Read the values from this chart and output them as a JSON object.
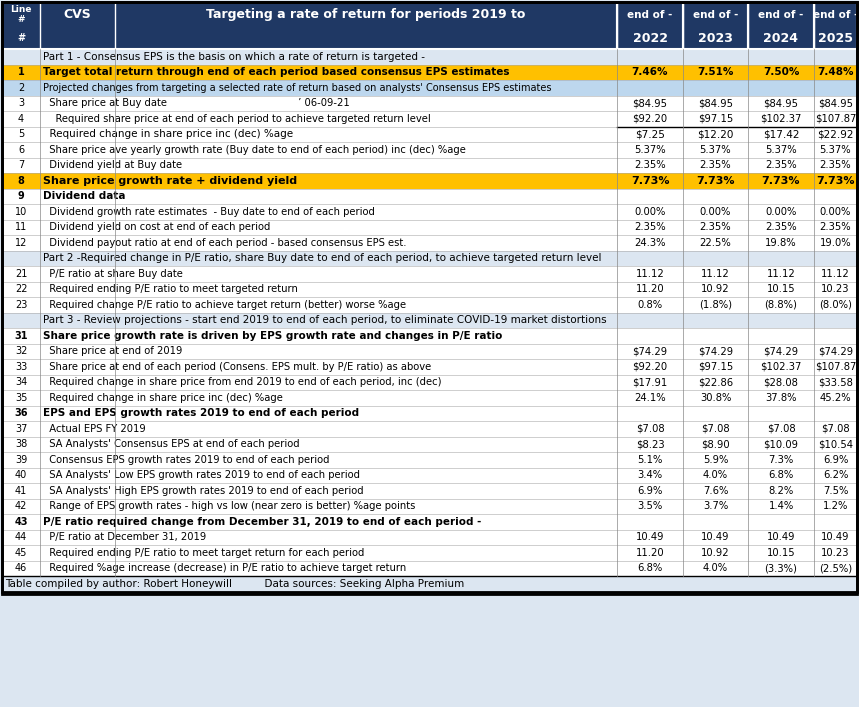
{
  "header_row1": [
    "Line\n#",
    "CVS",
    "Targeting a rate of return for periods 2019 to",
    "end of -",
    "end of -",
    "end of -",
    "end of -"
  ],
  "header_row2": [
    "",
    "",
    "",
    "2022",
    "2023",
    "2024",
    "2025"
  ],
  "rows": [
    {
      "line": "",
      "indent": 0,
      "text": "Part 1 - Consensus EPS is the basis on which a rate of return is targeted -",
      "vals": [
        "",
        "",
        "",
        ""
      ],
      "style": "part_header"
    },
    {
      "line": "1",
      "indent": 0,
      "text": "Target total return through end of each period based consensus EPS estimates",
      "vals": [
        "7.46%",
        "7.51%",
        "7.50%",
        "7.48%"
      ],
      "style": "highlight_gold"
    },
    {
      "line": "2",
      "indent": 0,
      "text": "Projected changes from targeting a selected rate of return based on analysts' Consensus EPS estimates",
      "vals": [
        "",
        "",
        "",
        ""
      ],
      "style": "subheader_blue"
    },
    {
      "line": "3",
      "indent": 1,
      "text": "Share price at Buy date                                          ’ 06-09-21",
      "vals": [
        "$84.95",
        "$84.95",
        "$84.95",
        "$84.95"
      ],
      "style": "normal"
    },
    {
      "line": "4",
      "indent": 2,
      "text": "Required share price at end of each period to achieve targeted return level",
      "vals": [
        "$92.20",
        "$97.15",
        "$102.37",
        "$107.87"
      ],
      "style": "normal"
    },
    {
      "line": "5",
      "indent": 1,
      "text": "Required change in share price inc (dec) %age",
      "vals": [
        "$7.25",
        "$12.20",
        "$17.42",
        "$22.92"
      ],
      "style": "border_top"
    },
    {
      "line": "6",
      "indent": 1,
      "text": "Share price ave yearly growth rate (Buy date to end of each period) inc (dec) %age",
      "vals": [
        "5.37%",
        "5.37%",
        "5.37%",
        "5.37%"
      ],
      "style": "normal"
    },
    {
      "line": "7",
      "indent": 1,
      "text": "Dividend yield at Buy date",
      "vals": [
        "2.35%",
        "2.35%",
        "2.35%",
        "2.35%"
      ],
      "style": "normal"
    },
    {
      "line": "8",
      "indent": 0,
      "text": "Share price growth rate + dividend yield",
      "vals": [
        "7.73%",
        "7.73%",
        "7.73%",
        "7.73%"
      ],
      "style": "highlight_gold_bold"
    },
    {
      "line": "9",
      "indent": 0,
      "text": "Dividend data",
      "vals": [
        "",
        "",
        "",
        ""
      ],
      "style": "bold_text"
    },
    {
      "line": "10",
      "indent": 1,
      "text": "Dividend growth rate estimates  - Buy date to end of each period",
      "vals": [
        "0.00%",
        "0.00%",
        "0.00%",
        "0.00%"
      ],
      "style": "normal"
    },
    {
      "line": "11",
      "indent": 1,
      "text": "Dividend yield on cost at end of each period",
      "vals": [
        "2.35%",
        "2.35%",
        "2.35%",
        "2.35%"
      ],
      "style": "normal"
    },
    {
      "line": "12",
      "indent": 1,
      "text": "Dividend payout ratio at end of each period - based consensus EPS est.",
      "vals": [
        "24.3%",
        "22.5%",
        "19.8%",
        "19.0%"
      ],
      "style": "normal"
    },
    {
      "line": "",
      "indent": 0,
      "text": "Part 2 -Required change in P/E ratio, share Buy date to end of each period, to achieve targeted return level",
      "vals": [
        "",
        "",
        "",
        ""
      ],
      "style": "part_header"
    },
    {
      "line": "21",
      "indent": 1,
      "text": "P/E ratio at share Buy date",
      "vals": [
        "11.12",
        "11.12",
        "11.12",
        "11.12"
      ],
      "style": "normal"
    },
    {
      "line": "22",
      "indent": 1,
      "text": "Required ending P/E ratio to meet targeted return",
      "vals": [
        "11.20",
        "10.92",
        "10.15",
        "10.23"
      ],
      "style": "normal"
    },
    {
      "line": "23",
      "indent": 1,
      "text": "Required change P/E ratio to achieve target return (better) worse %age",
      "vals": [
        "0.8%",
        "(1.8%)",
        "(8.8%)",
        "(8.0%)"
      ],
      "style": "normal"
    },
    {
      "line": "",
      "indent": 0,
      "text": "Part 3 - Review projections - start end 2019 to end of each period, to eliminate COVID-19 market distortions",
      "vals": [
        "",
        "",
        "",
        ""
      ],
      "style": "part_header"
    },
    {
      "line": "31",
      "indent": 0,
      "text": "Share price growth rate is driven by EPS growth rate and changes in P/E ratio",
      "vals": [
        "",
        "",
        "",
        ""
      ],
      "style": "bold_text"
    },
    {
      "line": "32",
      "indent": 1,
      "text": "Share price at end of 2019",
      "vals": [
        "$74.29",
        "$74.29",
        "$74.29",
        "$74.29"
      ],
      "style": "normal"
    },
    {
      "line": "33",
      "indent": 1,
      "text": "Share price at end of each period (Consens. EPS mult. by P/E ratio) as above",
      "vals": [
        "$92.20",
        "$97.15",
        "$102.37",
        "$107.87"
      ],
      "style": "normal"
    },
    {
      "line": "34",
      "indent": 1,
      "text": "Required change in share price from end 2019 to end of each period, inc (dec)",
      "vals": [
        "$17.91",
        "$22.86",
        "$28.08",
        "$33.58"
      ],
      "style": "normal"
    },
    {
      "line": "35",
      "indent": 1,
      "text": "Required change in share price inc (dec) %age",
      "vals": [
        "24.1%",
        "30.8%",
        "37.8%",
        "45.2%"
      ],
      "style": "normal"
    },
    {
      "line": "36",
      "indent": 0,
      "text": "EPS and EPS growth rates 2019 to end of each period",
      "vals": [
        "",
        "",
        "",
        ""
      ],
      "style": "bold_text"
    },
    {
      "line": "37",
      "indent": 1,
      "text": "Actual EPS FY 2019",
      "vals": [
        "$7.08",
        "$7.08",
        "$7.08",
        "$7.08"
      ],
      "style": "normal"
    },
    {
      "line": "38",
      "indent": 1,
      "text": "SA Analysts' Consensus EPS at end of each period",
      "vals": [
        "$8.23",
        "$8.90",
        "$10.09",
        "$10.54"
      ],
      "style": "normal"
    },
    {
      "line": "39",
      "indent": 1,
      "text": "Consensus EPS growth rates 2019 to end of each period",
      "vals": [
        "5.1%",
        "5.9%",
        "7.3%",
        "6.9%"
      ],
      "style": "normal"
    },
    {
      "line": "40",
      "indent": 1,
      "text": "SA Analysts' Low EPS growth rates 2019 to end of each period",
      "vals": [
        "3.4%",
        "4.0%",
        "6.8%",
        "6.2%"
      ],
      "style": "normal"
    },
    {
      "line": "41",
      "indent": 1,
      "text": "SA Analysts' High EPS growth rates 2019 to end of each period",
      "vals": [
        "6.9%",
        "7.6%",
        "8.2%",
        "7.5%"
      ],
      "style": "normal"
    },
    {
      "line": "42",
      "indent": 1,
      "text": "Range of EPS growth rates - high vs low (near zero is better) %age points",
      "vals": [
        "3.5%",
        "3.7%",
        "1.4%",
        "1.2%"
      ],
      "style": "normal"
    },
    {
      "line": "43",
      "indent": 0,
      "text": "P/E ratio required change from December 31, 2019 to end of each period -",
      "vals": [
        "",
        "",
        "",
        ""
      ],
      "style": "bold_text"
    },
    {
      "line": "44",
      "indent": 1,
      "text": "P/E ratio at December 31, 2019",
      "vals": [
        "10.49",
        "10.49",
        "10.49",
        "10.49"
      ],
      "style": "normal"
    },
    {
      "line": "45",
      "indent": 1,
      "text": "Required ending P/E ratio to meet target return for each period",
      "vals": [
        "11.20",
        "10.92",
        "10.15",
        "10.23"
      ],
      "style": "normal"
    },
    {
      "line": "46",
      "indent": 1,
      "text": "Required %age increase (decrease) in P/E ratio to achieve target return",
      "vals": [
        "6.8%",
        "4.0%",
        "(3.3%)",
        "(2.5%)"
      ],
      "style": "normal"
    }
  ],
  "footer": "Table compiled by author: Robert Honeywill          Data sources: Seeking Alpha Premium",
  "bg_color": "#dce6f1",
  "header_bg": "#1f3864",
  "header_fg": "#ffffff",
  "part_header_bg": "#dce6f1",
  "part_header_fg": "#000000",
  "gold_bg": "#ffc000",
  "gold_fg": "#000000",
  "subheader_blue_bg": "#bdd7ee",
  "normal_bg": "#ffffff",
  "bold_text_bg": "#ffffff",
  "table_border": "#000000"
}
